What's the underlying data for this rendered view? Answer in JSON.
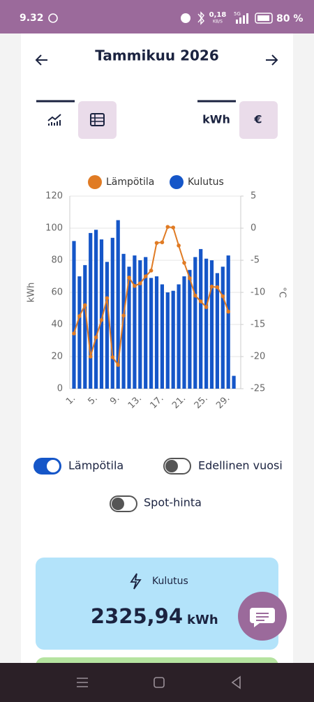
{
  "status": {
    "time": "9.32",
    "net": "0,18",
    "net_unit": "KB/S",
    "signal": "5G",
    "battery": "80 %"
  },
  "header": {
    "title": "Tammikuu 2026"
  },
  "unit_tabs": [
    "kWh",
    "€"
  ],
  "chart_data": {
    "type": "combo",
    "ylabel": "kWh",
    "y2label": "°C",
    "categories": [
      "1.",
      null,
      null,
      null,
      "5.",
      null,
      null,
      null,
      "9.",
      null,
      null,
      null,
      "13.",
      null,
      null,
      null,
      "17.",
      null,
      null,
      null,
      "21.",
      null,
      null,
      null,
      "25.",
      null,
      null,
      null,
      "29.",
      null,
      null
    ],
    "series": [
      {
        "name": "Lämpötila",
        "type": "line",
        "axis": "y2",
        "color": "#e07b24",
        "values": [
          -16.4,
          -13.7,
          -12,
          -20,
          -17,
          -14.3,
          -10.9,
          -20.1,
          -21.3,
          -13.6,
          -7.7,
          -9,
          -8.6,
          -7.5,
          -6.6,
          -2.3,
          -2.2,
          0.2,
          0.1,
          -2.7,
          -5.4,
          -7.8,
          -10.5,
          -11.4,
          -12.3,
          -9.1,
          -9.2,
          -10.6,
          -13,
          null,
          null
        ]
      },
      {
        "name": "Kulutus",
        "type": "bar",
        "color": "#1556c8",
        "values": [
          92,
          70,
          77,
          97,
          99,
          93,
          79,
          94,
          105,
          84,
          76,
          83,
          80,
          82,
          69,
          70,
          65,
          60,
          61,
          65,
          70,
          74,
          82,
          87,
          81,
          80,
          72,
          76,
          83,
          8,
          0
        ]
      }
    ],
    "ylim": [
      0,
      120
    ],
    "yticks": [
      0,
      20,
      40,
      60,
      80,
      100,
      120
    ],
    "y2lim": [
      -25,
      5
    ],
    "y2ticks": [
      -25,
      -20,
      -15,
      -10,
      -5,
      0,
      5
    ],
    "grid": true
  },
  "toggles": [
    {
      "label": "Lämpötila",
      "on": true
    },
    {
      "label": "Edellinen vuosi",
      "on": false
    },
    {
      "label": "Spot-hinta",
      "on": false
    }
  ],
  "summary": {
    "label": "Kulutus",
    "value": "2325,94",
    "unit": "kWh"
  }
}
